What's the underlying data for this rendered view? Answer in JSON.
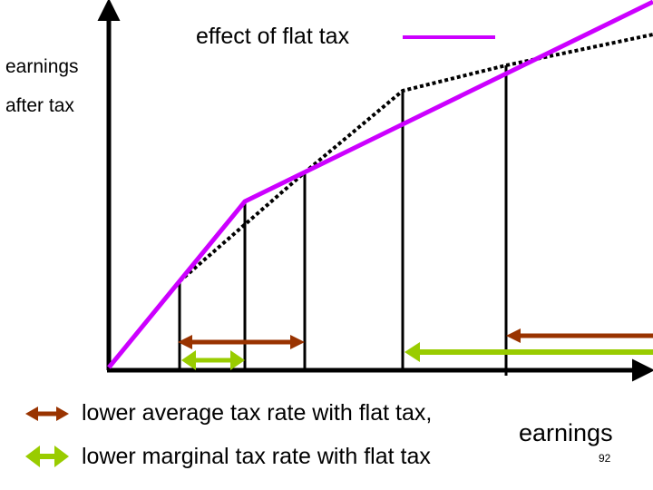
{
  "title": "effect of flat tax",
  "y_axis_label": [
    "earnings",
    "after tax"
  ],
  "x_axis_label": "earnings",
  "legend": [
    {
      "text": "lower average tax rate with flat tax,",
      "icon": "double-arrow-brown"
    },
    {
      "text": "lower marginal tax rate with flat tax",
      "icon": "double-arrow-green"
    }
  ],
  "page_number": "92",
  "colors": {
    "flat_tax_line": "#cc00ff",
    "progressive_line": "#000000",
    "average_rate_arrow": "#993300",
    "marginal_rate_arrow": "#99cc00",
    "axes": "#000000"
  }
}
